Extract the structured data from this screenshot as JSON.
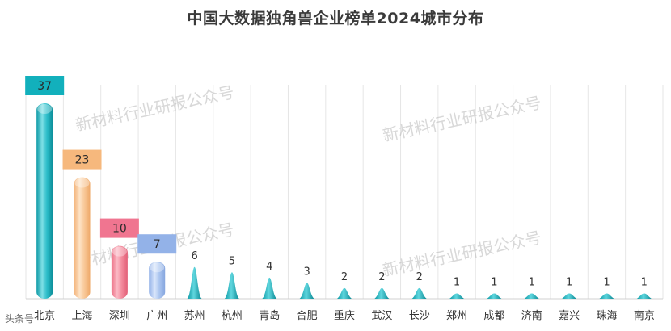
{
  "chart_data": {
    "type": "bar",
    "title": "中国大数据独角兽企业榜单2024城市分布",
    "categories": [
      "北京",
      "上海",
      "深圳",
      "广州",
      "苏州",
      "杭州",
      "青岛",
      "合肥",
      "重庆",
      "武汉",
      "长沙",
      "郑州",
      "成都",
      "济南",
      "嘉兴",
      "珠海",
      "南京"
    ],
    "values": [
      37,
      23,
      10,
      7,
      6,
      5,
      4,
      3,
      2,
      2,
      2,
      1,
      1,
      1,
      1,
      1,
      1
    ],
    "xlabel": "",
    "ylabel": "",
    "ylim": [
      0,
      37
    ],
    "grid": true,
    "legend": "none",
    "colors": {
      "cyan": "#2bbcc8",
      "orange": "#f8c796",
      "pink": "#f2889a",
      "blue": "#a9c4ef",
      "teal": "#18b3bf"
    }
  },
  "watermark": {
    "text": "新材料行业研报公众号"
  },
  "footer": {
    "text": "头条号"
  }
}
